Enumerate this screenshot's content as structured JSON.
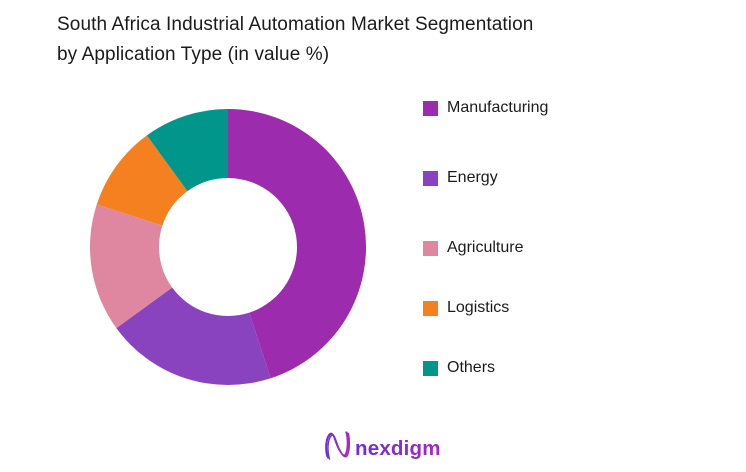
{
  "header": {
    "title_lines": [
      "South Africa Industrial Automation Market Segmentation",
      "by Application Type (in value %)"
    ],
    "title_full": "South Africa Industrial Automation Market Segmentation by Application Type (in value %)"
  },
  "chart_data": {
    "type": "pie",
    "subtype": "donut",
    "title": "South Africa Industrial Automation Market Segmentation by Application Type (in value %)",
    "unit": "value %",
    "categories": [
      "Manufacturing",
      "Energy",
      "Agriculture",
      "Logistics",
      "Others"
    ],
    "values": [
      45,
      20,
      15,
      10,
      10
    ],
    "colors": [
      "#9C2BAE",
      "#8A43BE",
      "#DF87A0",
      "#F5801F",
      "#00968B"
    ],
    "start_angle_deg": 0,
    "direction": "clockwise",
    "inner_radius_ratio": 0.5,
    "legend_position": "right",
    "data_labels": false
  },
  "legend": {
    "items": [
      {
        "label": "Manufacturing",
        "color": "#9C2BAE"
      },
      {
        "label": "Energy",
        "color": "#8A43BE"
      },
      {
        "label": "Agriculture",
        "color": "#DF87A0"
      },
      {
        "label": "Logistics",
        "color": "#F5801F"
      },
      {
        "label": "Others",
        "color": "#00968B"
      }
    ]
  },
  "footer": {
    "brand": "nexdigm",
    "brand_color_start": "#6D2ED6",
    "brand_color_end": "#A826C6"
  }
}
